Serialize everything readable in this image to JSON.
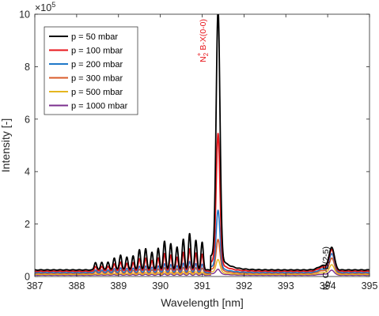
{
  "chart_data": {
    "type": "line",
    "xlabel": "Wavelength [nm]",
    "ylabel": "Intensity [-]",
    "xlim": [
      387,
      395
    ],
    "ylim": [
      0,
      10
    ],
    "y_exponent_label": "×10",
    "y_exponent_power": "5",
    "x_ticks": [
      "387",
      "388",
      "389",
      "390",
      "391",
      "392",
      "393",
      "394",
      "395"
    ],
    "y_ticks": [
      "0",
      "2",
      "4",
      "6",
      "8",
      "10"
    ],
    "grid": false,
    "legend_position": "top-left",
    "annotations": [
      {
        "base": "N",
        "sub": "2",
        "sup": "+",
        "rest": " B-X(0-0)",
        "color": "#e8161b"
      },
      {
        "base": "N",
        "sub": "2",
        "sup": "",
        "rest": " C-B(2-5)",
        "color": "#000000"
      }
    ],
    "series": [
      {
        "name": "p = 50 mbar",
        "color": "#000000",
        "width": 1.8,
        "base": 0.25,
        "band": 1.45,
        "main_peak": 9.65,
        "second_peak": 0.93,
        "tail": 0.55
      },
      {
        "name": "p = 100 mbar",
        "color": "#e8161b",
        "width": 1.8,
        "base": 0.2,
        "band": 0.9,
        "main_peak": 5.1,
        "second_peak": 0.88,
        "tail": 0.35
      },
      {
        "name": "p = 200 mbar",
        "color": "#1f78c8",
        "width": 1.6,
        "base": 0.15,
        "band": 0.45,
        "main_peak": 2.3,
        "second_peak": 0.75,
        "tail": 0.22
      },
      {
        "name": "p = 300 mbar",
        "color": "#d95b29",
        "width": 1.6,
        "base": 0.12,
        "band": 0.28,
        "main_peak": 1.25,
        "second_peak": 0.6,
        "tail": 0.16
      },
      {
        "name": "p = 500 mbar",
        "color": "#e5b620",
        "width": 1.4,
        "base": 0.08,
        "band": 0.12,
        "main_peak": 0.55,
        "second_peak": 0.38,
        "tail": 0.1
      },
      {
        "name": "p = 1000 mbar",
        "color": "#7b2f8e",
        "width": 1.4,
        "base": 0.05,
        "band": 0.06,
        "main_peak": 0.22,
        "second_peak": 0.2,
        "tail": 0.06
      }
    ]
  }
}
